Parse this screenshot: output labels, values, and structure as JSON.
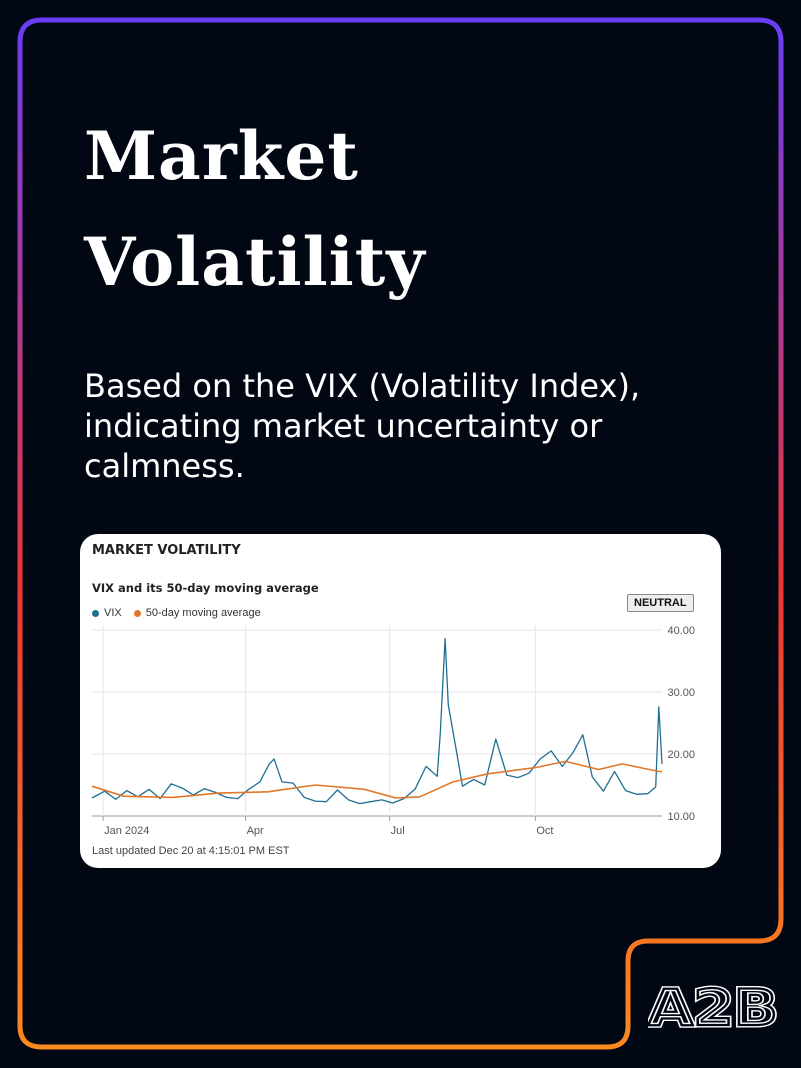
{
  "header": {
    "title_line1": "Market",
    "title_line2": "Volatility",
    "subtitle": "Based on the VIX (Volatility Index), indicating market uncertainty or calmness."
  },
  "card": {
    "title": "MARKET VOLATILITY",
    "chart_title": "VIX and its 50-day moving average",
    "badge": "NEUTRAL",
    "updated": "Last updated Dec 20 at 4:15:01 PM EST"
  },
  "colors": {
    "vix": "#1f6f94",
    "moving_average": "#e0782b",
    "frame_top": "#6a3df5",
    "frame_middle": "#ee3535",
    "frame_bottom": "#fb8a1e"
  },
  "logo": {
    "text": "A2B"
  },
  "chart_data": {
    "type": "line",
    "title": "VIX and its 50-day moving average",
    "x_tick_labels": [
      "Jan 2024",
      "Apr",
      "Jul",
      "Oct"
    ],
    "x_ticks": [
      "2024-01-02",
      "2024-04-01",
      "2024-07-01",
      "2024-10-01"
    ],
    "x_range": [
      "2023-12-26",
      "2024-12-20"
    ],
    "ylim": [
      10,
      40
    ],
    "y_ticks": [
      10,
      20,
      30,
      40
    ],
    "y_tick_labels": [
      "10.00",
      "20.00",
      "30.00",
      "40.00"
    ],
    "grid": "vertical at x ticks, horizontal at y ticks",
    "legend": "top-left",
    "series": [
      {
        "name": "VIX",
        "points": [
          [
            "2023-12-26",
            12.9
          ],
          [
            "2024-01-03",
            14.0
          ],
          [
            "2024-01-10",
            12.7
          ],
          [
            "2024-01-17",
            14.1
          ],
          [
            "2024-01-24",
            13.1
          ],
          [
            "2024-01-31",
            14.3
          ],
          [
            "2024-02-07",
            12.8
          ],
          [
            "2024-02-14",
            15.2
          ],
          [
            "2024-02-21",
            14.5
          ],
          [
            "2024-02-28",
            13.4
          ],
          [
            "2024-03-06",
            14.4
          ],
          [
            "2024-03-13",
            13.8
          ],
          [
            "2024-03-20",
            13.0
          ],
          [
            "2024-03-27",
            12.8
          ],
          [
            "2024-04-03",
            14.3
          ],
          [
            "2024-04-10",
            15.5
          ],
          [
            "2024-04-16",
            18.4
          ],
          [
            "2024-04-19",
            19.2
          ],
          [
            "2024-04-24",
            15.5
          ],
          [
            "2024-05-01",
            15.3
          ],
          [
            "2024-05-08",
            13.0
          ],
          [
            "2024-05-15",
            12.4
          ],
          [
            "2024-05-22",
            12.3
          ],
          [
            "2024-05-29",
            14.2
          ],
          [
            "2024-06-05",
            12.6
          ],
          [
            "2024-06-12",
            12.0
          ],
          [
            "2024-06-19",
            12.3
          ],
          [
            "2024-06-26",
            12.6
          ],
          [
            "2024-07-03",
            12.1
          ],
          [
            "2024-07-10",
            12.8
          ],
          [
            "2024-07-17",
            14.3
          ],
          [
            "2024-07-24",
            18.0
          ],
          [
            "2024-07-31",
            16.4
          ],
          [
            "2024-08-02",
            23.4
          ],
          [
            "2024-08-05",
            38.6
          ],
          [
            "2024-08-07",
            27.9
          ],
          [
            "2024-08-12",
            20.7
          ],
          [
            "2024-08-16",
            14.8
          ],
          [
            "2024-08-23",
            15.9
          ],
          [
            "2024-08-30",
            15.0
          ],
          [
            "2024-09-06",
            22.4
          ],
          [
            "2024-09-13",
            16.6
          ],
          [
            "2024-09-20",
            16.2
          ],
          [
            "2024-09-27",
            16.9
          ],
          [
            "2024-10-04",
            19.2
          ],
          [
            "2024-10-11",
            20.5
          ],
          [
            "2024-10-18",
            18.0
          ],
          [
            "2024-10-25",
            20.3
          ],
          [
            "2024-10-31",
            23.1
          ],
          [
            "2024-11-06",
            16.3
          ],
          [
            "2024-11-13",
            14.0
          ],
          [
            "2024-11-20",
            17.2
          ],
          [
            "2024-11-27",
            14.1
          ],
          [
            "2024-12-04",
            13.5
          ],
          [
            "2024-12-11",
            13.6
          ],
          [
            "2024-12-16",
            14.7
          ],
          [
            "2024-12-18",
            27.6
          ],
          [
            "2024-12-20",
            18.4
          ]
        ]
      },
      {
        "name": "50-day moving average",
        "points": [
          [
            "2023-12-26",
            14.8
          ],
          [
            "2024-01-15",
            13.2
          ],
          [
            "2024-02-15",
            13.0
          ],
          [
            "2024-03-15",
            13.7
          ],
          [
            "2024-04-15",
            13.9
          ],
          [
            "2024-05-15",
            15.0
          ],
          [
            "2024-06-15",
            14.3
          ],
          [
            "2024-07-05",
            12.9
          ],
          [
            "2024-07-20",
            13.1
          ],
          [
            "2024-08-10",
            15.5
          ],
          [
            "2024-09-01",
            16.8
          ],
          [
            "2024-10-01",
            17.8
          ],
          [
            "2024-10-20",
            18.8
          ],
          [
            "2024-11-10",
            17.5
          ],
          [
            "2024-11-25",
            18.4
          ],
          [
            "2024-12-10",
            17.6
          ],
          [
            "2024-12-20",
            17.1
          ]
        ]
      }
    ]
  }
}
